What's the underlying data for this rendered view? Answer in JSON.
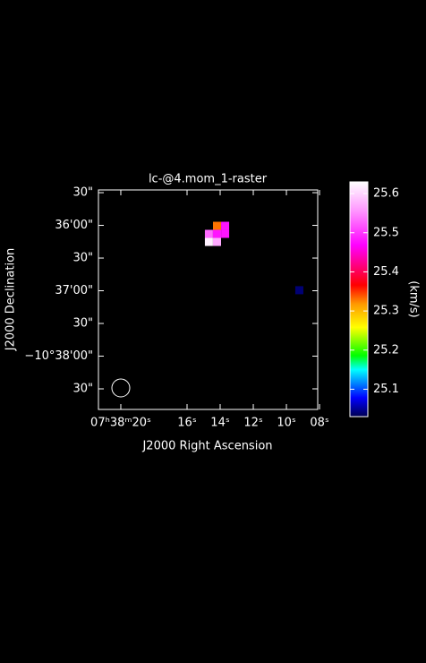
{
  "chart_data": {
    "type": "raster",
    "title": "lc-@4.mom_1-raster",
    "x_label": "J2000 Right Ascension",
    "y_label": "J2000 Declination",
    "xlim": [
      21.35,
      8.11
    ],
    "xticks": [
      {
        "value": 20,
        "label": "07ʰ38ᵐ20ˢ"
      },
      {
        "value": 16,
        "label": "16ˢ"
      },
      {
        "value": 14,
        "label": "14ˢ"
      },
      {
        "value": 12,
        "label": "12ˢ"
      },
      {
        "value": 10,
        "label": "10ˢ"
      },
      {
        "value": 8,
        "label": "08ˢ"
      }
    ],
    "ylim": [
      2328.9,
      2127.5
    ],
    "yticks": [
      {
        "value": 2130,
        "label": "30\""
      },
      {
        "value": 2160,
        "label": "36'00\""
      },
      {
        "value": 2190,
        "label": "30\""
      },
      {
        "value": 2220,
        "label": "37'00\""
      },
      {
        "value": 2250,
        "label": "30\""
      },
      {
        "value": 2280,
        "label": "−10°38'00\""
      },
      {
        "value": 2310,
        "label": "30\""
      }
    ],
    "pixels": [
      {
        "ra": 14.19,
        "dec": 2160.4,
        "value": 25.33
      },
      {
        "ra": 13.7,
        "dec": 2160.4,
        "value": 25.48
      },
      {
        "ra": 14.68,
        "dec": 2167.8,
        "value": 25.53
      },
      {
        "ra": 14.19,
        "dec": 2167.8,
        "value": 25.48
      },
      {
        "ra": 13.7,
        "dec": 2167.8,
        "value": 25.48
      },
      {
        "ra": 14.68,
        "dec": 2175.2,
        "value": 25.62
      },
      {
        "ra": 14.19,
        "dec": 2175.2,
        "value": 25.57
      },
      {
        "ra": 9.22,
        "dec": 2219.5,
        "value": 25.04
      }
    ],
    "colorbar": {
      "label": "(km/s)",
      "lim": [
        25.03,
        25.63
      ],
      "ticks": [
        25.1,
        25.2,
        25.3,
        25.4,
        25.5,
        25.6
      ]
    }
  }
}
